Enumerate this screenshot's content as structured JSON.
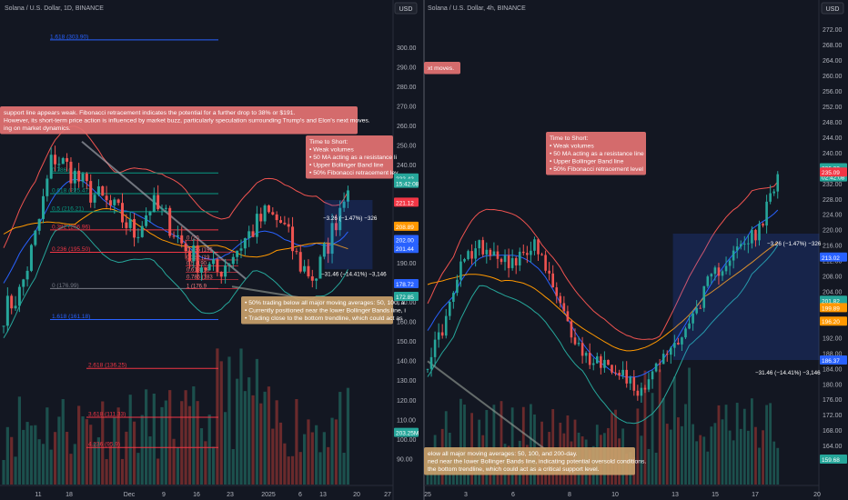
{
  "colors": {
    "bg": "#131722",
    "axis_text": "#b2b5be",
    "up": "#26a69a",
    "down": "#ef5350",
    "vol_up": "#1e5a55",
    "vol_down": "#7a2e2e",
    "fib_blue": "#2962ff",
    "fib_red": "#f23645",
    "fib_green": "#089981",
    "bb_upper": "#ef5350",
    "bb_lower": "#26a69a",
    "bb_mid": "#2962ff",
    "ma_orange": "#ff9800",
    "note_red": "#e57373",
    "note_tan": "#c9a16b",
    "proj_box": "#2962ff"
  },
  "left_panel": {
    "title": "Solana / U.S. Dollar, 1D, BINANCE",
    "currency": "USD",
    "chart_data": {
      "type": "candlestick",
      "ylim": [
        83,
        315
      ],
      "y_ticks": [
        90,
        100,
        110,
        120,
        130,
        140,
        150,
        160,
        170,
        180,
        190,
        200,
        210,
        220,
        230,
        240,
        250,
        260,
        270,
        280,
        290,
        300
      ],
      "x_ticks": [
        "11",
        "18",
        "Dec",
        "9",
        "16",
        "23",
        "2025",
        "6",
        "13",
        "20",
        "27"
      ],
      "price_tags": [
        {
          "value": 233.43,
          "label": "233.43",
          "color": "#26a69a"
        },
        {
          "value": 230.7,
          "label": "15:42:08",
          "color": "#26a69a"
        },
        {
          "value": 221.12,
          "label": "221.12",
          "color": "#f23645"
        },
        {
          "value": 208.8,
          "label": "208.89",
          "color": "#ff9800"
        },
        {
          "value": 202.0,
          "label": "202.00",
          "color": "#2962ff"
        },
        {
          "value": 197.5,
          "label": "201.44",
          "color": "#2962ff"
        },
        {
          "value": 179.5,
          "label": "178.72",
          "color": "#2962ff"
        },
        {
          "value": 173.0,
          "label": "172.85",
          "color": "#26a69a"
        },
        {
          "value": 103.6,
          "label": "203.25M",
          "color": "#26a69a"
        }
      ],
      "fib_levels": [
        {
          "label": "1.618 (303.90)",
          "value": 303.9,
          "color": "#2962ff"
        },
        {
          "label": "0.786 (",
          "value": 236.0,
          "color": "#089981"
        },
        {
          "label": "0.618 (225.47)",
          "value": 225.47,
          "color": "#089981"
        },
        {
          "label": "0.5 (216.21)",
          "value": 216.21,
          "color": "#089981"
        },
        {
          "label": "0.382 (206.96)",
          "value": 206.96,
          "color": "#f23645"
        },
        {
          "label": "0.236 (195.50)",
          "value": 195.5,
          "color": "#f23645"
        },
        {
          "label": "0 (176.99)",
          "value": 176.99,
          "color": "#787b86"
        },
        {
          "label": "1.618 (161.18)",
          "value": 161.18,
          "color": "#2962ff"
        },
        {
          "label": "2.618 (136.25)",
          "value": 136.25,
          "color": "#f23645"
        },
        {
          "label": "3.618 (111.33)",
          "value": 111.33,
          "color": "#f23645"
        },
        {
          "label": "4.236 (95.9)",
          "value": 95.9,
          "color": "#f23645"
        }
      ],
      "fib_small_labels": [
        {
          "label": "0 (20",
          "value": 201.5
        },
        {
          "label": "0.236 (195.",
          "value": 195.6
        },
        {
          "label": "0.382 (19",
          "value": 191.6
        },
        {
          "label": "0.5 (190",
          "value": 188.6
        },
        {
          "label": "0.618 (18",
          "value": 185.3
        },
        {
          "label": "0.786 (183",
          "value": 181.6
        },
        {
          "label": "1 (176.9",
          "value": 176.99
        }
      ],
      "notes": [
        {
          "lines": [
            "support line appears weak. Fibonacci retracement indicates the potential for a further drop to 38% or $191.",
            "  However, its short-term price action is influenced by market buzz, particularly speculation surrounding Trump's and Elon's next moves.",
            "ing on market dynamics."
          ],
          "color": "#e57373"
        },
        {
          "lines": [
            "Time to Short:",
            "  • Weak volumes",
            "  • 50 MA acting as a resistance li",
            "  • Upper Bollinger Band line",
            "  • 50% Fibonacci retracement lev"
          ],
          "color": "#e57373"
        },
        {
          "lines": [
            "• 50% trading below all major moving averages: 50, 100, a",
            "• Currently positioned near the lower Bollinger Bands line, i",
            "• Trading close to the bottom trendline, which could act as"
          ],
          "color": "#c9a16b"
        }
      ],
      "measure_labels": [
        "−3.26 (−1.47%) −326",
        "−31.46 (−14.41%) −3,146"
      ]
    }
  },
  "right_panel": {
    "title": "Solana / U.S. Dollar, 4h, BINANCE",
    "currency": "USD",
    "chart_data": {
      "type": "candlestick",
      "ylim": [
        154,
        275
      ],
      "y_ticks": [
        160,
        164,
        168,
        172,
        176,
        180,
        184,
        188,
        192,
        196,
        200,
        204,
        208,
        212,
        216,
        220,
        224,
        228,
        232,
        236,
        240,
        244,
        248,
        252,
        256,
        260,
        264,
        268,
        272
      ],
      "x_ticks": [
        "25",
        "3",
        "6",
        "8",
        "10",
        "13",
        "15",
        "17",
        "20"
      ],
      "price_tags": [
        {
          "value": 236.2,
          "label": "236.32",
          "color": "#26a69a"
        },
        {
          "value": 233.8,
          "label": "02:42:08",
          "color": "#26a69a"
        },
        {
          "value": 235.09,
          "label": "235.09",
          "color": "#f23645"
        },
        {
          "value": 213.02,
          "label": "213.02",
          "color": "#2962ff"
        },
        {
          "value": 201.82,
          "label": "201.82",
          "color": "#26a69a"
        },
        {
          "value": 199.9,
          "label": "199.89",
          "color": "#ff9800"
        },
        {
          "value": 196.4,
          "label": "196.20",
          "color": "#ff9800"
        },
        {
          "value": 186.3,
          "label": "186.37",
          "color": "#2962ff"
        },
        {
          "value": 160.6,
          "label": "159.68",
          "color": "#26a69a"
        }
      ],
      "notes": [
        {
          "lines": [
            "xt moves."
          ],
          "color": "#e57373"
        },
        {
          "lines": [
            "Time to Short:",
            "  • Weak volumes",
            "  • 50 MA acting as a resistance line",
            "  • Upper Bollinger Band line",
            "  • 50% Fibonacci retracement level"
          ],
          "color": "#e57373"
        },
        {
          "lines": [
            "elow all major moving averages: 50, 100, and 200-day.",
            "ned near the lower Bollinger Bands line, indicating potential oversold conditions.",
            "the bottom trendline, which could act as a critical support level."
          ],
          "color": "#c9a16b"
        }
      ],
      "measure_labels": [
        "−3.26 (−1.47%) −326",
        "−31.46 (−14.41%) −3,146"
      ]
    }
  }
}
